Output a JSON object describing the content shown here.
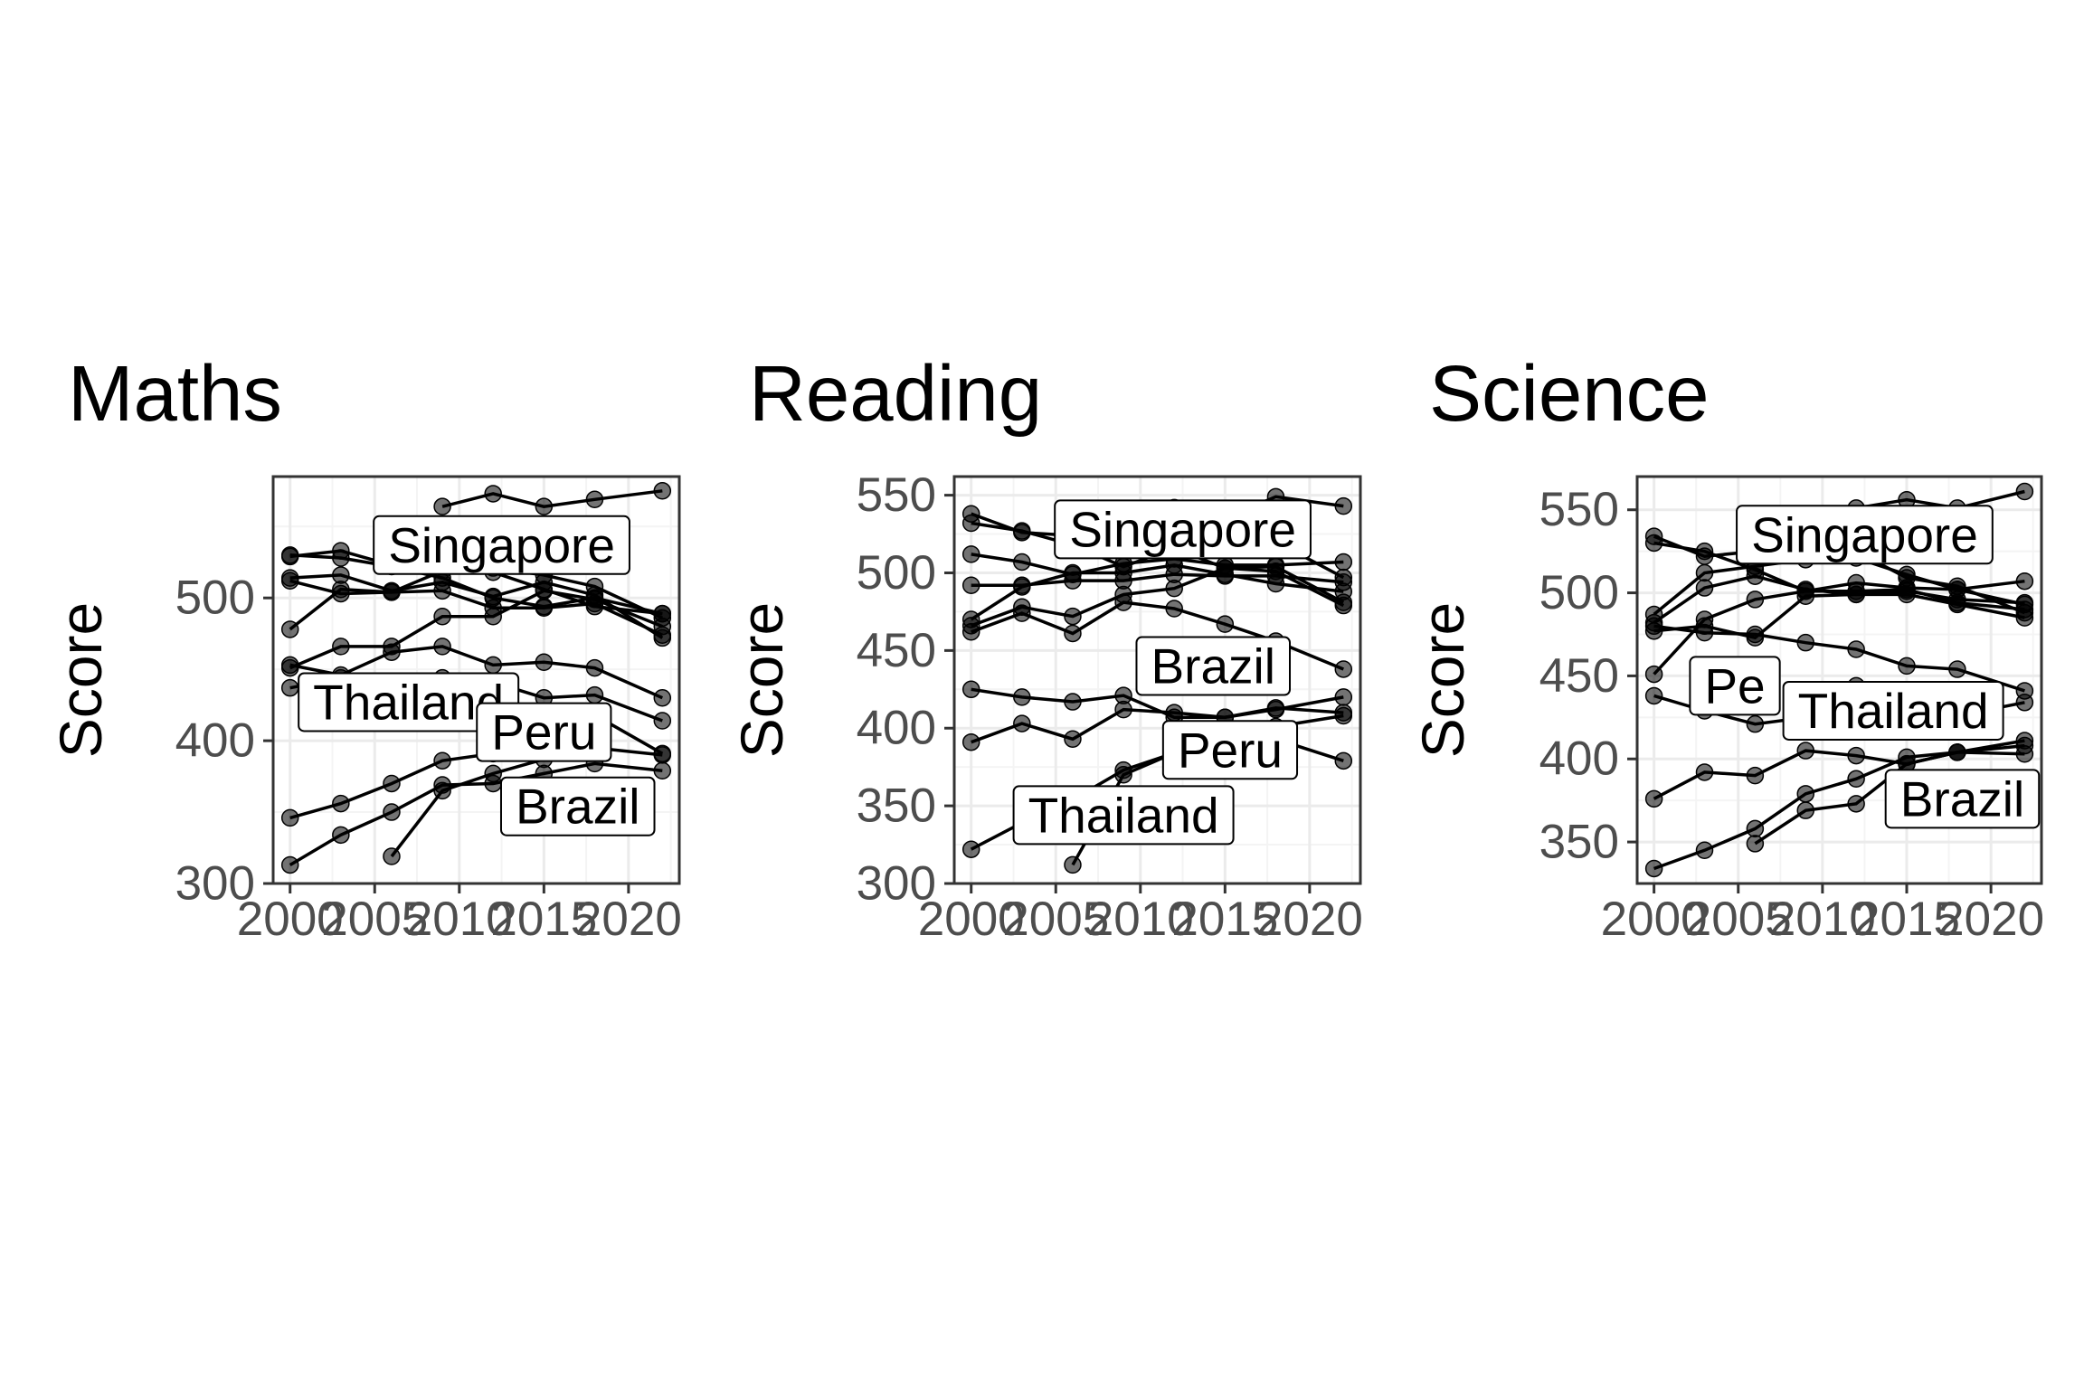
{
  "chart_data": [
    {
      "type": "line",
      "title": "Maths",
      "ylabel": "Score",
      "xlabel": "",
      "xlim": [
        1999,
        2023
      ],
      "ylim": [
        300,
        585
      ],
      "xticks": [
        2000,
        2005,
        2010,
        2015,
        2020
      ],
      "yticks": [
        300,
        400,
        500
      ],
      "grid": true,
      "series": [
        {
          "x": [
            2000,
            2003,
            2006,
            2009,
            2012,
            2015,
            2018,
            2022
          ],
          "y": [
            529,
            533,
            523,
            529,
            521,
            516,
            508,
            486
          ]
        },
        {
          "x": [
            2000,
            2003,
            2006,
            2009,
            2012,
            2015,
            2018,
            2022
          ],
          "y": [
            514,
            516,
            505,
            511,
            501,
            511,
            502,
            472
          ]
        },
        {
          "x": [
            2000,
            2003,
            2006,
            2009,
            2012,
            2015,
            2018,
            2022
          ],
          "y": [
            530,
            528,
            522,
            514,
            500,
            494,
            500,
            489
          ]
        },
        {
          "x": [
            2000,
            2003,
            2006,
            2009,
            2012,
            2015,
            2018,
            2022
          ],
          "y": [
            512,
            503,
            504,
            519,
            518,
            506,
            494,
            489
          ]
        },
        {
          "x": [
            2000,
            2003,
            2006,
            2009,
            2012,
            2015,
            2018,
            2022
          ],
          "y": [
            478,
            506,
            504,
            505,
            493,
            493,
            496,
            474
          ]
        },
        {
          "x": [
            2000,
            2003,
            2006,
            2009,
            2012,
            2015,
            2018,
            2022
          ],
          "y": [
            451,
            466,
            466,
            487,
            487,
            505,
            499,
            480
          ]
        },
        {
          "x": [
            2000,
            2003,
            2006,
            2009,
            2012,
            2015,
            2018,
            2022
          ],
          "y": [
            453,
            446,
            462,
            466,
            453,
            455,
            451,
            430
          ]
        },
        {
          "x": [
            2000,
            2003,
            2006,
            2009,
            2012,
            2015,
            2018,
            2022
          ],
          "y": [
            437,
            444,
            438,
            444,
            441,
            430,
            432,
            414
          ]
        },
        {
          "x": [
            2009,
            2012,
            2015,
            2018,
            2022
          ],
          "y": [
            564,
            573,
            564,
            569,
            575
          ]
        },
        {
          "x": [
            2000,
            2003,
            2006,
            2009,
            2012,
            2015,
            2018,
            2022
          ],
          "y": [
            346,
            356,
            370,
            386,
            391,
            415,
            418,
            391
          ]
        },
        {
          "x": [
            2006,
            2009,
            2012,
            2015,
            2018,
            2022
          ],
          "y": [
            319,
            365,
            377,
            387,
            395,
            390
          ]
        },
        {
          "x": [
            2000,
            2003,
            2006,
            2009,
            2012,
            2015,
            2018,
            2022
          ],
          "y": [
            313,
            334,
            350,
            369,
            370,
            377,
            384,
            379
          ]
        }
      ],
      "labels": [
        {
          "text": "Singapore",
          "x": 2012.5,
          "y": 537
        },
        {
          "text": "Thailand",
          "x": 2007,
          "y": 427
        },
        {
          "text": "Peru",
          "x": 2015,
          "y": 406
        },
        {
          "text": "Brazil",
          "x": 2017,
          "y": 354
        }
      ]
    },
    {
      "type": "line",
      "title": "Reading",
      "ylabel": "Score",
      "xlabel": "",
      "xlim": [
        1999,
        2023
      ],
      "ylim": [
        300,
        562
      ],
      "xticks": [
        2000,
        2005,
        2010,
        2015,
        2020
      ],
      "yticks": [
        300,
        350,
        400,
        450,
        500,
        550
      ],
      "grid": true,
      "series": [
        {
          "x": [
            2000,
            2003,
            2006,
            2009,
            2012,
            2015,
            2018,
            2022
          ],
          "y": [
            538,
            526,
            524,
            523,
            523,
            526,
            520,
            497
          ]
        },
        {
          "x": [
            2000,
            2003,
            2006,
            2009,
            2012,
            2015,
            2018,
            2022
          ],
          "y": [
            532,
            527,
            518,
            504,
            516,
            503,
            504,
            481
          ]
        },
        {
          "x": [
            2000,
            2003,
            2006,
            2009,
            2012,
            2015,
            2018,
            2022
          ],
          "y": [
            512,
            507,
            499,
            506,
            509,
            505,
            505,
            507
          ]
        },
        {
          "x": [
            2000,
            2003,
            2006,
            2009,
            2012,
            2015,
            2018,
            2022
          ],
          "y": [
            492,
            492,
            495,
            495,
            499,
            498,
            498,
            494
          ]
        },
        {
          "x": [
            2000,
            2003,
            2006,
            2009,
            2012,
            2015,
            2018,
            2022
          ],
          "y": [
            470,
            491,
            500,
            500,
            505,
            499,
            493,
            488
          ]
        },
        {
          "x": [
            2000,
            2003,
            2006,
            2009,
            2012,
            2015,
            2018,
            2022
          ],
          "y": [
            466,
            478,
            472,
            486,
            490,
            503,
            501,
            479
          ]
        },
        {
          "x": [
            2000,
            2003,
            2006,
            2009,
            2012,
            2015,
            2018,
            2022
          ],
          "y": [
            462,
            474,
            461,
            481,
            477,
            467,
            456,
            438
          ]
        },
        {
          "x": [
            2009,
            2012,
            2015,
            2018,
            2022
          ],
          "y": [
            526,
            542,
            535,
            549,
            543
          ]
        },
        {
          "x": [
            2000,
            2003,
            2006,
            2009,
            2012,
            2015,
            2018,
            2022
          ],
          "y": [
            425,
            420,
            417,
            421,
            407,
            407,
            412,
            420
          ]
        },
        {
          "x": [
            2000,
            2003,
            2006,
            2009,
            2012,
            2015,
            2018,
            2022
          ],
          "y": [
            391,
            403,
            393,
            412,
            410,
            407,
            413,
            410
          ]
        },
        {
          "x": [
            2006,
            2009,
            2012,
            2015,
            2018,
            2022
          ],
          "y": [
            312,
            370,
            384,
            398,
            401,
            408
          ]
        },
        {
          "x": [
            2000,
            2003,
            2006,
            2009,
            2012,
            2015,
            2018,
            2022
          ],
          "y": [
            322,
            339,
            354,
            373,
            384,
            393,
            393,
            379
          ]
        }
      ],
      "labels": [
        {
          "text": "Singapore",
          "x": 2012.5,
          "y": 528
        },
        {
          "text": "Brazil",
          "x": 2014.3,
          "y": 440
        },
        {
          "text": "Peru",
          "x": 2015.3,
          "y": 386
        },
        {
          "text": "Thailand",
          "x": 2009,
          "y": 344
        }
      ]
    },
    {
      "type": "line",
      "title": "Science",
      "ylabel": "Score",
      "xlabel": "",
      "xlim": [
        1999,
        2023
      ],
      "ylim": [
        325,
        570
      ],
      "xticks": [
        2000,
        2005,
        2010,
        2015,
        2020
      ],
      "yticks": [
        350,
        400,
        450,
        500,
        550
      ],
      "grid": true,
      "series": [
        {
          "x": [
            2000,
            2003,
            2006,
            2009,
            2012,
            2015,
            2018,
            2022
          ],
          "y": [
            534,
            522,
            525,
            527,
            525,
            509,
            504,
            488
          ]
        },
        {
          "x": [
            2000,
            2003,
            2006,
            2009,
            2012,
            2015,
            2018,
            2022
          ],
          "y": [
            530,
            525,
            514,
            501,
            501,
            502,
            494,
            490
          ]
        },
        {
          "x": [
            2000,
            2003,
            2006,
            2009,
            2012,
            2015,
            2018,
            2022
          ],
          "y": [
            487,
            512,
            516,
            520,
            521,
            511,
            502,
            507
          ]
        },
        {
          "x": [
            2000,
            2003,
            2006,
            2009,
            2012,
            2015,
            2018,
            2022
          ],
          "y": [
            482,
            503,
            510,
            502,
            499,
            501,
            496,
            494
          ]
        },
        {
          "x": [
            2000,
            2003,
            2006,
            2009,
            2012,
            2015,
            2018,
            2022
          ],
          "y": [
            477,
            480,
            473,
            498,
            499,
            499,
            493,
            485
          ]
        },
        {
          "x": [
            2000,
            2003,
            2006,
            2009,
            2012,
            2015,
            2018,
            2022
          ],
          "y": [
            480,
            476,
            475,
            470,
            466,
            456,
            454,
            441
          ]
        },
        {
          "x": [
            2000,
            2003,
            2006,
            2009,
            2012,
            2015,
            2018,
            2022
          ],
          "y": [
            451,
            484,
            496,
            501,
            506,
            503,
            502,
            493
          ]
        },
        {
          "x": [
            2000,
            2003,
            2006,
            2009,
            2012,
            2015,
            2018,
            2022
          ],
          "y": [
            438,
            429,
            421,
            425,
            444,
            421,
            426,
            434
          ]
        },
        {
          "x": [
            2009,
            2012,
            2015,
            2018,
            2022
          ],
          "y": [
            542,
            551,
            556,
            551,
            561
          ]
        },
        {
          "x": [
            2000,
            2003,
            2006,
            2009,
            2012,
            2015,
            2018,
            2022
          ],
          "y": [
            376,
            392,
            390,
            405,
            402,
            397,
            404,
            408
          ]
        },
        {
          "x": [
            2006,
            2009,
            2012,
            2015,
            2018,
            2022
          ],
          "y": [
            349,
            369,
            373,
            397,
            404,
            411
          ]
        },
        {
          "x": [
            2000,
            2003,
            2006,
            2009,
            2012,
            2015,
            2018,
            2022
          ],
          "y": [
            334,
            345,
            358,
            379,
            388,
            401,
            404,
            403
          ]
        }
      ],
      "labels": [
        {
          "text": "Singapore",
          "x": 2012.5,
          "y": 535
        },
        {
          "text": "Pe",
          "x": 2004.8,
          "y": 444
        },
        {
          "text": "Thailand",
          "x": 2014.2,
          "y": 429
        },
        {
          "text": "Brazil",
          "x": 2018.3,
          "y": 376
        }
      ]
    }
  ]
}
